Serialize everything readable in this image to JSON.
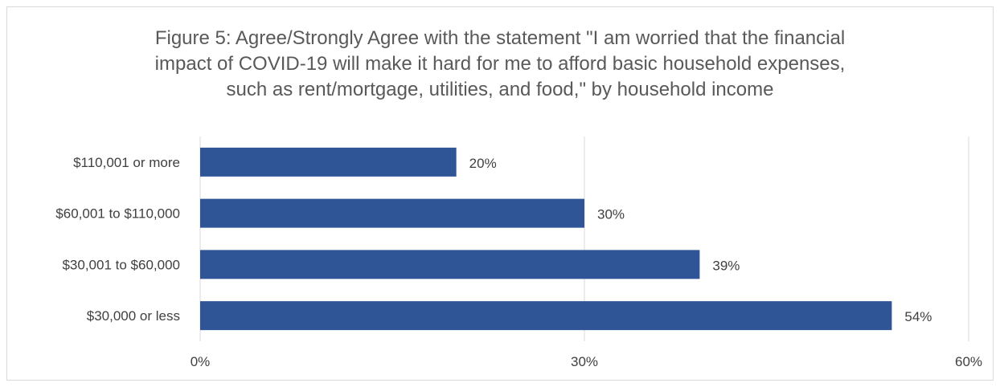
{
  "chart_data": {
    "type": "bar",
    "orientation": "horizontal",
    "title": "Figure 5: Agree/Strongly Agree with the statement \"I am worried that the financial impact of COVID-19 will make it hard for me to afford basic household expenses, such as rent/mortgage, utilities, and food,\" by household income",
    "title_lines": [
      "Figure 5: Agree/Strongly Agree with the statement \"I am worried that the financial",
      "impact of COVID-19 will make it hard for me to afford basic household expenses,",
      "such as rent/mortgage, utilities, and food,\" by household income"
    ],
    "categories": [
      "$110,001 or more",
      "$60,001 to $110,000",
      "$30,001 to $60,000",
      "$30,000 or less"
    ],
    "values": [
      20,
      30,
      39,
      54
    ],
    "value_labels": [
      "20%",
      "30%",
      "39%",
      "54%"
    ],
    "xlim": [
      0,
      60
    ],
    "xticks": [
      0,
      30,
      60
    ],
    "xtick_labels": [
      "0%",
      "30%",
      "60%"
    ],
    "xlabel": "",
    "ylabel": "",
    "grid": "vertical",
    "legend": "none",
    "bar_color": "#2f5597",
    "grid_color": "#d9d9d9"
  }
}
